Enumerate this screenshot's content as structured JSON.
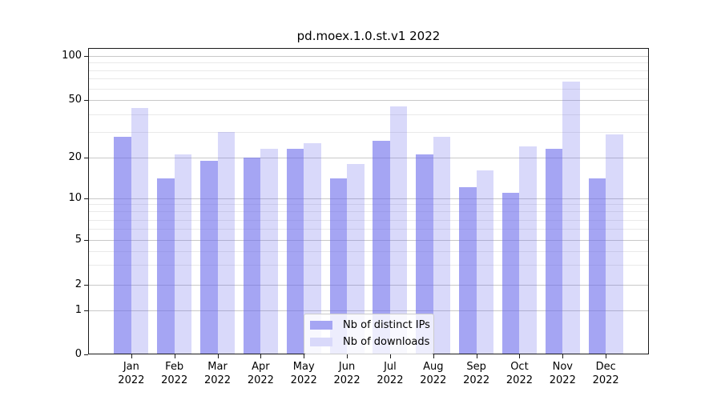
{
  "title": "pd.moex.1.0.st.v1 2022",
  "chart_data": {
    "type": "bar",
    "title": "pd.moex.1.0.st.v1 2022",
    "xlabel": "",
    "ylabel": "",
    "yscale": "symlog-like (log above 1, linear 0-1)",
    "ylim": [
      0,
      113
    ],
    "grid": "both (major and minor horizontal gridlines)",
    "legend_position": "lower center inside plot",
    "yticks": [
      100,
      50,
      20,
      10,
      5,
      2,
      1,
      0
    ],
    "ytick_labels": [
      "100",
      "50",
      "20",
      "10",
      "5",
      "2",
      "1",
      "0"
    ],
    "minor_yticks": [
      3,
      4,
      6,
      7,
      8,
      9,
      30,
      40,
      60,
      70,
      80,
      90
    ],
    "categories": [
      {
        "month": "Jan",
        "year": "2022"
      },
      {
        "month": "Feb",
        "year": "2022"
      },
      {
        "month": "Mar",
        "year": "2022"
      },
      {
        "month": "Apr",
        "year": "2022"
      },
      {
        "month": "May",
        "year": "2022"
      },
      {
        "month": "Jun",
        "year": "2022"
      },
      {
        "month": "Jul",
        "year": "2022"
      },
      {
        "month": "Aug",
        "year": "2022"
      },
      {
        "month": "Sep",
        "year": "2022"
      },
      {
        "month": "Oct",
        "year": "2022"
      },
      {
        "month": "Nov",
        "year": "2022"
      },
      {
        "month": "Dec",
        "year": "2022"
      }
    ],
    "series": [
      {
        "name": "Nb of distinct IPs",
        "fill": "rgba(105,105,235,0.60)",
        "swatch_color": "#a5a5f3",
        "values": [
          28,
          14,
          19,
          20,
          23,
          14,
          26,
          21,
          12,
          11,
          23,
          14
        ]
      },
      {
        "name": "Nb of downloads",
        "fill": "rgba(105,105,235,0.25)",
        "swatch_color": "#d9d9fa",
        "values": [
          44,
          21,
          30,
          23,
          25,
          18,
          45,
          28,
          16,
          24,
          67,
          29
        ]
      }
    ]
  },
  "colors": {
    "background": "#ffffff",
    "spine": "#1a1a1a",
    "grid_major": "#c9c9c9",
    "grid_minor": "#e9e9e9",
    "bar_dark": "#a5a5f3",
    "bar_light": "#d9d9fa"
  }
}
